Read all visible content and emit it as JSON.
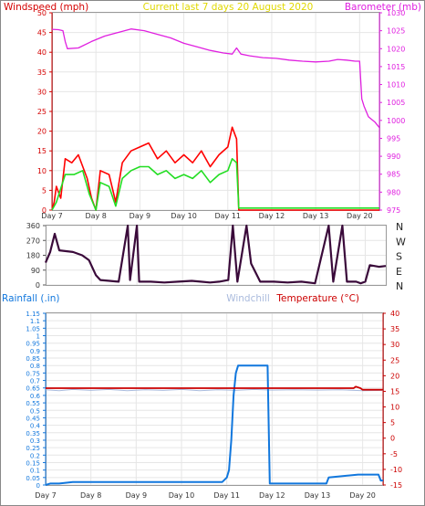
{
  "header": {
    "left_label": "Windspeed (mph)",
    "center_label": "Current last 7 days 20 August 2020",
    "right_label": "Barometer (mb)"
  },
  "colors": {
    "wind_axis": "#d40000",
    "title": "#e0d800",
    "baro": "#e020e0",
    "gust": "#ff0000",
    "avg": "#22dd22",
    "dir": "#3a0a3a",
    "rain": "#1177dd",
    "temp": "#cc0000",
    "windchill": "#aabbdd",
    "grid": "#e6e6e6"
  },
  "chart_data": [
    {
      "type": "line",
      "title": "Current last 7 days 20 August 2020",
      "x_ticks": [
        "Day 7",
        "Day 8",
        "Day 9",
        "Day 10",
        "Day 11",
        "Day 12",
        "Day 13",
        "Day 20"
      ],
      "y_left_label": "Windspeed (mph)",
      "y_left_ticks": [
        0,
        5,
        10,
        15,
        20,
        25,
        30,
        35,
        40,
        45,
        50
      ],
      "ylim_left": [
        0,
        50
      ],
      "y_right_label": "Barometer (mb)",
      "y_right_ticks": [
        975,
        980,
        985,
        990,
        995,
        1000,
        1005,
        1010,
        1015,
        1020,
        1025,
        1030
      ],
      "ylim_right": [
        975,
        1030
      ],
      "series": [
        {
          "axis": "right",
          "points": [
            [
              0,
              1025.4
            ],
            [
              0.15,
              1025.3
            ],
            [
              0.25,
              1025
            ],
            [
              0.3,
              1022
            ],
            [
              0.35,
              1020
            ],
            [
              0.6,
              1020.2
            ],
            [
              0.9,
              1022
            ],
            [
              1.2,
              1023.5
            ],
            [
              1.5,
              1024.5
            ],
            [
              1.8,
              1025.5
            ],
            [
              2.1,
              1025
            ],
            [
              2.4,
              1024
            ],
            [
              2.7,
              1023
            ],
            [
              3.0,
              1021.5
            ],
            [
              3.3,
              1020.5
            ],
            [
              3.6,
              1019.5
            ],
            [
              3.9,
              1018.8
            ],
            [
              4.1,
              1018.5
            ],
            [
              4.2,
              1020.2
            ],
            [
              4.3,
              1018.5
            ],
            [
              4.5,
              1018
            ],
            [
              4.8,
              1017.5
            ],
            [
              5.1,
              1017.3
            ],
            [
              5.4,
              1016.8
            ],
            [
              5.7,
              1016.5
            ],
            [
              6.0,
              1016.3
            ],
            [
              6.3,
              1016.5
            ],
            [
              6.5,
              1017
            ],
            [
              6.7,
              1016.8
            ],
            [
              6.9,
              1016.5
            ],
            [
              7.0,
              1016.5
            ],
            [
              7.05,
              1006
            ],
            [
              7.1,
              1004
            ],
            [
              7.2,
              1001
            ],
            [
              7.35,
              999.5
            ],
            [
              7.45,
              998
            ]
          ]
        },
        {
          "axis": "left",
          "points": [
            [
              0,
              0
            ],
            [
              0.05,
              2
            ],
            [
              0.1,
              6
            ],
            [
              0.2,
              3
            ],
            [
              0.3,
              13
            ],
            [
              0.45,
              12
            ],
            [
              0.6,
              14
            ],
            [
              0.8,
              8
            ],
            [
              0.9,
              3
            ],
            [
              1.0,
              0
            ],
            [
              1.1,
              10
            ],
            [
              1.3,
              9
            ],
            [
              1.45,
              2
            ],
            [
              1.6,
              12
            ],
            [
              1.8,
              15
            ],
            [
              2.0,
              16
            ],
            [
              2.2,
              17
            ],
            [
              2.4,
              13
            ],
            [
              2.6,
              15
            ],
            [
              2.8,
              12
            ],
            [
              3.0,
              14
            ],
            [
              3.2,
              12
            ],
            [
              3.4,
              15
            ],
            [
              3.6,
              11
            ],
            [
              3.8,
              14
            ],
            [
              4.0,
              16
            ],
            [
              4.1,
              21
            ],
            [
              4.2,
              18
            ],
            [
              4.25,
              0
            ],
            [
              7.45,
              0
            ]
          ]
        },
        {
          "axis": "left",
          "points": [
            [
              0,
              0
            ],
            [
              0.1,
              2
            ],
            [
              0.3,
              9
            ],
            [
              0.5,
              9
            ],
            [
              0.7,
              10
            ],
            [
              0.85,
              4
            ],
            [
              1.0,
              0
            ],
            [
              1.1,
              7
            ],
            [
              1.3,
              6
            ],
            [
              1.45,
              1
            ],
            [
              1.6,
              8
            ],
            [
              1.8,
              10
            ],
            [
              2.0,
              11
            ],
            [
              2.2,
              11
            ],
            [
              2.4,
              9
            ],
            [
              2.6,
              10
            ],
            [
              2.8,
              8
            ],
            [
              3.0,
              9
            ],
            [
              3.2,
              8
            ],
            [
              3.4,
              10
            ],
            [
              3.6,
              7
            ],
            [
              3.8,
              9
            ],
            [
              4.0,
              10
            ],
            [
              4.1,
              13
            ],
            [
              4.2,
              12
            ],
            [
              4.25,
              0.5
            ],
            [
              7.45,
              0.5
            ]
          ]
        }
      ]
    },
    {
      "type": "line",
      "y_ticks": [
        0,
        90,
        180,
        270,
        360
      ],
      "ylim": [
        0,
        360
      ],
      "direction_labels": [
        "N",
        "W",
        "S",
        "E",
        "N"
      ],
      "points": [
        [
          0,
          135
        ],
        [
          0.1,
          200
        ],
        [
          0.2,
          310
        ],
        [
          0.3,
          210
        ],
        [
          0.6,
          200
        ],
        [
          0.8,
          180
        ],
        [
          0.95,
          150
        ],
        [
          1.1,
          60
        ],
        [
          1.2,
          30
        ],
        [
          1.4,
          25
        ],
        [
          1.6,
          20
        ],
        [
          1.8,
          360
        ],
        [
          1.85,
          30
        ],
        [
          2.0,
          360
        ],
        [
          2.05,
          20
        ],
        [
          2.3,
          20
        ],
        [
          2.6,
          15
        ],
        [
          2.9,
          20
        ],
        [
          3.2,
          25
        ],
        [
          3.4,
          20
        ],
        [
          3.6,
          15
        ],
        [
          3.8,
          20
        ],
        [
          4.0,
          30
        ],
        [
          4.1,
          360
        ],
        [
          4.2,
          20
        ],
        [
          4.4,
          360
        ],
        [
          4.5,
          130
        ],
        [
          4.7,
          20
        ],
        [
          5.0,
          20
        ],
        [
          5.3,
          15
        ],
        [
          5.6,
          20
        ],
        [
          5.9,
          10
        ],
        [
          6.2,
          360
        ],
        [
          6.3,
          20
        ],
        [
          6.5,
          360
        ],
        [
          6.6,
          20
        ],
        [
          6.8,
          20
        ],
        [
          6.9,
          10
        ],
        [
          7.0,
          20
        ],
        [
          7.1,
          120
        ],
        [
          7.3,
          110
        ],
        [
          7.45,
          115
        ]
      ]
    },
    {
      "type": "line",
      "x_ticks": [
        "Day 7",
        "Day 8",
        "Day 9",
        "Day 10",
        "Day 11",
        "Day 12",
        "Day 13",
        "Day 20"
      ],
      "y_left_label": "Rainfall (.in)",
      "y_left_ticks": [
        0,
        0.05,
        0.1,
        0.15,
        0.2,
        0.25,
        0.3,
        0.35,
        0.4,
        0.45,
        0.5,
        0.55,
        0.6,
        0.65,
        0.7,
        0.75,
        0.8,
        0.85,
        0.9,
        0.95,
        1,
        1.05,
        1.1,
        1.15
      ],
      "ylim_left": [
        0,
        1.15
      ],
      "y_right_label": "Temperature (°C)",
      "y_right_ticks": [
        -15,
        -10,
        -5,
        0,
        5,
        10,
        15,
        20,
        25,
        30,
        35,
        40
      ],
      "ylim_right": [
        -15,
        40
      ],
      "legend_middle": "Windchill",
      "series": [
        {
          "axis": "left",
          "points": [
            [
              0,
              0
            ],
            [
              0.1,
              0.01
            ],
            [
              0.3,
              0.01
            ],
            [
              0.6,
              0.02
            ],
            [
              1.0,
              0.02
            ],
            [
              2.0,
              0.02
            ],
            [
              3.0,
              0.02
            ],
            [
              3.9,
              0.02
            ],
            [
              4.0,
              0.05
            ],
            [
              4.05,
              0.1
            ],
            [
              4.1,
              0.3
            ],
            [
              4.15,
              0.6
            ],
            [
              4.2,
              0.75
            ],
            [
              4.25,
              0.8
            ],
            [
              4.9,
              0.8
            ],
            [
              4.95,
              0.01
            ],
            [
              6.2,
              0.01
            ],
            [
              6.25,
              0.05
            ],
            [
              6.9,
              0.07
            ],
            [
              7.35,
              0.07
            ],
            [
              7.4,
              0.03
            ],
            [
              7.45,
              0.03
            ]
          ]
        },
        {
          "axis": "right",
          "points": [
            [
              0,
              16
            ],
            [
              0.5,
              16
            ],
            [
              1.0,
              16
            ],
            [
              2.0,
              16
            ],
            [
              3.0,
              16
            ],
            [
              4.0,
              16
            ],
            [
              5.0,
              16
            ],
            [
              6.0,
              16
            ],
            [
              6.8,
              16
            ],
            [
              6.85,
              16.5
            ],
            [
              6.95,
              16
            ],
            [
              7.0,
              15.5
            ],
            [
              7.45,
              15.5
            ]
          ]
        },
        {
          "axis": "right",
          "points": [
            [
              0,
              15.5
            ],
            [
              0.3,
              15.2
            ],
            [
              0.6,
              15.6
            ],
            [
              1.0,
              15.3
            ],
            [
              1.4,
              15.6
            ],
            [
              1.8,
              15.2
            ],
            [
              2.2,
              15.5
            ],
            [
              2.6,
              15.3
            ],
            [
              3.0,
              15.6
            ],
            [
              3.4,
              15.2
            ],
            [
              3.8,
              15.5
            ],
            [
              4.2,
              15.3
            ],
            [
              4.6,
              15.6
            ],
            [
              5.0,
              15.4
            ],
            [
              5.5,
              15.5
            ],
            [
              6.0,
              15.4
            ],
            [
              6.5,
              15.5
            ],
            [
              7.0,
              15.2
            ],
            [
              7.45,
              15.3
            ]
          ]
        }
      ]
    }
  ]
}
